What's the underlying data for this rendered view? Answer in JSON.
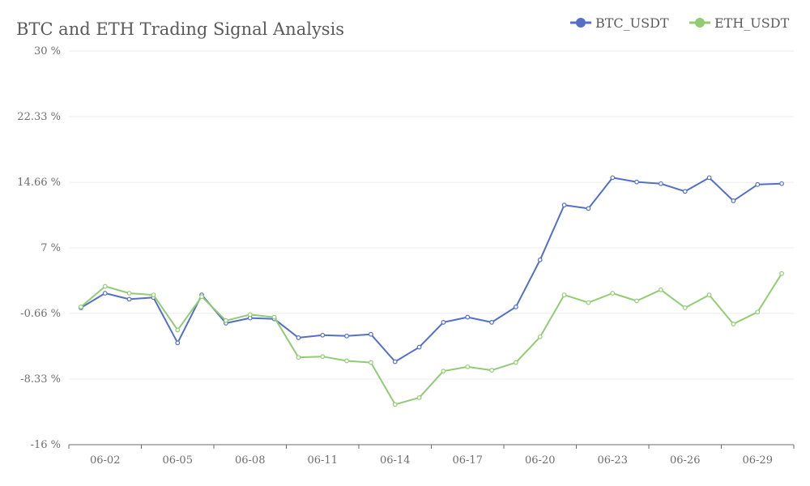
{
  "chart_data": {
    "type": "line",
    "title": "BTC and ETH Trading Signal Analysis",
    "xlabel": "",
    "ylabel": "",
    "ylim": [
      -16,
      30
    ],
    "y_ticks": [
      30,
      22.33,
      14.66,
      7,
      -0.66,
      -8.33,
      -16
    ],
    "y_tick_labels": [
      "30 %",
      "22.33 %",
      "14.66 %",
      "7 %",
      "-0.66 %",
      "-8.33 %",
      "-16 %"
    ],
    "x_tick_labels": [
      "06-02",
      "06-05",
      "06-08",
      "06-11",
      "06-14",
      "06-17",
      "06-20",
      "06-23",
      "06-26",
      "06-29"
    ],
    "categories": [
      "06-01",
      "06-02",
      "06-03",
      "06-04",
      "06-05",
      "06-06",
      "06-07",
      "06-08",
      "06-09",
      "06-10",
      "06-11",
      "06-12",
      "06-13",
      "06-14",
      "06-15",
      "06-16",
      "06-17",
      "06-18",
      "06-19",
      "06-20",
      "06-21",
      "06-22",
      "06-23",
      "06-24",
      "06-25",
      "06-26",
      "06-27",
      "06-28",
      "06-29",
      "06-30"
    ],
    "grid": true,
    "legend_position": "top-right",
    "series": [
      {
        "name": "BTC_USDT",
        "color": "#5470c6",
        "values": [
          0.0,
          1.7,
          1.0,
          1.2,
          -4.1,
          1.5,
          -1.8,
          -1.2,
          -1.3,
          -3.5,
          -3.2,
          -3.3,
          -3.1,
          -6.3,
          -4.6,
          -1.7,
          -1.1,
          -1.7,
          0.1,
          5.6,
          12.0,
          11.6,
          15.2,
          14.7,
          14.5,
          13.6,
          15.2,
          12.5,
          14.4,
          14.5
        ]
      },
      {
        "name": "ETH_USDT",
        "color": "#91cc75",
        "values": [
          0.1,
          2.5,
          1.7,
          1.5,
          -2.6,
          1.3,
          -1.5,
          -0.8,
          -1.1,
          -5.8,
          -5.7,
          -6.2,
          -6.4,
          -11.3,
          -10.5,
          -7.4,
          -6.9,
          -7.3,
          -6.4,
          -3.4,
          1.5,
          0.6,
          1.7,
          0.8,
          2.1,
          0.0,
          1.5,
          -1.9,
          -0.5,
          4.0
        ]
      }
    ]
  }
}
